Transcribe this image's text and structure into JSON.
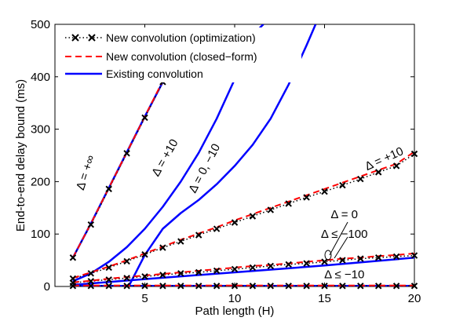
{
  "chart_data": {
    "type": "line",
    "title": "",
    "xlabel": "Path length (H)",
    "ylabel": "End-to-end delay bound (ms)",
    "xlim": [
      0,
      20
    ],
    "ylim": [
      0,
      500
    ],
    "xticks": [
      "5",
      "10",
      "15",
      "20"
    ],
    "yticks": [
      "0",
      "100",
      "200",
      "300",
      "400",
      "500"
    ],
    "grid": false,
    "legend_position": "top-left",
    "legend": [
      {
        "label": "New convolution (optimization)",
        "style": "dotted-x",
        "color": "#000000"
      },
      {
        "label": "New convolution (closed−form)",
        "style": "dashed",
        "color": "#ff0000"
      },
      {
        "label": "Existing convolution",
        "style": "solid",
        "color": "#0000ff"
      }
    ],
    "annotations": [
      {
        "text": "Δ = +∞",
        "x": 1.9,
        "y": 215,
        "rotate": -72
      },
      {
        "text": "Δ = +10",
        "x": 6.3,
        "y": 242,
        "rotate": -60
      },
      {
        "text": "Δ = 0, −10",
        "x": 8.5,
        "y": 222,
        "rotate": -62
      },
      {
        "text": "Δ = +10",
        "x": 18.4,
        "y": 237,
        "rotate": -24
      },
      {
        "text": "Δ = 0",
        "x": 16.1,
        "y": 130,
        "rotate": 0
      },
      {
        "text": "Δ ≤ −100",
        "x": 16.1,
        "y": 93,
        "rotate": 0
      },
      {
        "text": "Δ ≤ −10",
        "x": 16.1,
        "y": 16,
        "rotate": 0
      }
    ],
    "series": [
      {
        "style": "new-opt",
        "x": [
          1,
          2,
          3,
          4,
          5,
          6
        ],
        "y": [
          55,
          118,
          186,
          254,
          322,
          390
        ]
      },
      {
        "style": "new-cf",
        "x": [
          1,
          2,
          3,
          4,
          5,
          6
        ],
        "y": [
          55,
          120,
          188,
          256,
          324,
          392
        ]
      },
      {
        "style": "new-opt",
        "x": [
          1,
          2,
          3,
          4,
          5,
          6,
          7,
          8,
          9,
          10,
          11,
          12,
          13,
          14,
          15,
          16,
          17,
          18,
          19,
          20
        ],
        "y": [
          15,
          25,
          36,
          48,
          61,
          74,
          86,
          98,
          110,
          122,
          134,
          146,
          158,
          170,
          181,
          193,
          205,
          218,
          230,
          253
        ]
      },
      {
        "style": "new-cf",
        "x": [
          1,
          2,
          3,
          4,
          5,
          6,
          7,
          8,
          9,
          10,
          11,
          12,
          13,
          14,
          15,
          16,
          17,
          18,
          19,
          20
        ],
        "y": [
          16,
          27,
          38,
          50,
          63,
          76,
          89,
          101,
          113,
          126,
          138,
          150,
          162,
          174,
          186,
          198,
          210,
          222,
          234,
          257
        ]
      },
      {
        "style": "new-opt",
        "x": [
          1,
          2,
          3,
          4,
          5,
          6,
          7,
          8,
          9,
          10,
          11,
          12,
          13,
          14,
          15,
          16,
          17,
          18,
          19,
          20
        ],
        "y": [
          7,
          10,
          13,
          16,
          19,
          22,
          25,
          27,
          30,
          33,
          36,
          39,
          42,
          44,
          47,
          50,
          53,
          55,
          57,
          59
        ]
      },
      {
        "style": "new-cf",
        "x": [
          1,
          2,
          3,
          4,
          5,
          6,
          7,
          8,
          9,
          10,
          11,
          12,
          13,
          14,
          15,
          16,
          17,
          18,
          19,
          20
        ],
        "y": [
          8,
          11,
          15,
          18,
          21,
          24,
          27,
          30,
          33,
          36,
          39,
          41,
          44,
          47,
          50,
          53,
          55,
          58,
          60,
          63
        ]
      },
      {
        "style": "new-opt",
        "x": [
          1,
          2,
          3,
          4,
          5,
          6,
          7,
          8,
          9,
          10,
          11,
          12,
          13,
          14,
          15,
          16,
          17,
          18,
          19,
          20
        ],
        "y": [
          1,
          1,
          1,
          1,
          1,
          1,
          1,
          1,
          1,
          1,
          1,
          1,
          1,
          1,
          1,
          1,
          1,
          1,
          1,
          1
        ]
      },
      {
        "style": "new-cf",
        "x": [
          1,
          2,
          3,
          4,
          5,
          6,
          7,
          8,
          9,
          10,
          11,
          12,
          13,
          14,
          15,
          16,
          17,
          18,
          19,
          20
        ],
        "y": [
          2,
          2,
          2,
          2,
          2,
          2,
          2,
          2,
          2,
          2,
          2,
          2,
          2,
          2,
          2,
          2,
          2,
          2,
          2,
          2
        ]
      },
      {
        "style": "existing",
        "x": [
          1,
          2,
          3,
          4,
          5,
          6,
          6.2
        ],
        "y": [
          55,
          120,
          188,
          256,
          324,
          390,
          404
        ]
      },
      {
        "style": "existing",
        "x": [
          1,
          2,
          3,
          4,
          5,
          6,
          7,
          8,
          9,
          10,
          11,
          11.6
        ],
        "y": [
          10,
          25,
          47,
          75,
          110,
          152,
          200,
          255,
          320,
          395,
          480,
          500
        ]
      },
      {
        "style": "existing",
        "x": [
          4.1,
          5,
          6,
          7,
          8,
          9,
          10,
          11,
          12,
          13,
          14,
          14.5
        ],
        "y": [
          0,
          60,
          110,
          140,
          165,
          195,
          230,
          270,
          320,
          385,
          460,
          500
        ]
      },
      {
        "style": "existing",
        "x": [
          1,
          5,
          10,
          15,
          20
        ],
        "y": [
          3,
          14,
          27,
          40,
          55
        ]
      },
      {
        "style": "existing",
        "x": [
          1,
          20
        ],
        "y": [
          1,
          1
        ]
      }
    ]
  }
}
